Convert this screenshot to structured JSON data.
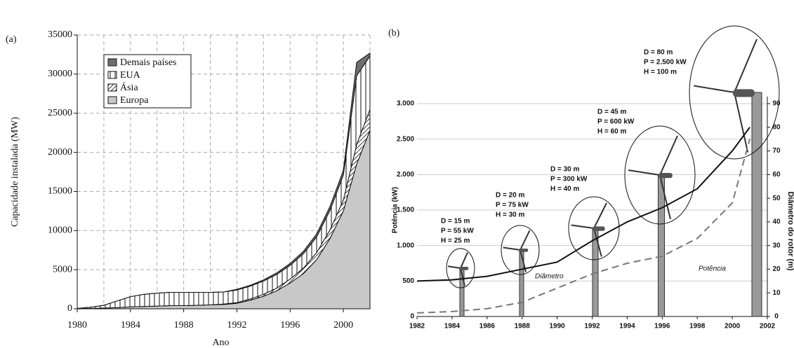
{
  "chart_data": [
    {
      "type": "stacked_area",
      "panel_label": "(a)",
      "xlabel": "Ano",
      "ylabel": "Capacidade instalada (MW)",
      "x": [
        1980,
        1981,
        1982,
        1983,
        1984,
        1985,
        1986,
        1987,
        1988,
        1989,
        1990,
        1991,
        1992,
        1993,
        1994,
        1995,
        1996,
        1997,
        1998,
        1999,
        2000,
        2001,
        2002
      ],
      "series": [
        {
          "name": "Europa",
          "color": "#c8c8c8",
          "hatch": "none",
          "values": [
            20,
            50,
            100,
            150,
            250,
            300,
            350,
            400,
            400,
            450,
            500,
            550,
            700,
            1100,
            1600,
            2300,
            3300,
            4500,
            6300,
            9000,
            12500,
            18500,
            22800
          ]
        },
        {
          "name": "Ásia",
          "color": "#ffffff",
          "hatch": "diagonal",
          "values": [
            0,
            0,
            0,
            0,
            0,
            0,
            0,
            0,
            0,
            0,
            0,
            50,
            100,
            150,
            250,
            350,
            500,
            700,
            900,
            1100,
            1400,
            2500,
            2700
          ]
        },
        {
          "name": "EUA",
          "color": "#ffffff",
          "hatch": "vertical",
          "values": [
            30,
            150,
            350,
            850,
            1300,
            1550,
            1650,
            1700,
            1700,
            1650,
            1600,
            1550,
            1600,
            1650,
            1700,
            1750,
            1750,
            1850,
            2000,
            2500,
            3200,
            8800,
            6800
          ]
        },
        {
          "name": "Demais países",
          "color": "#6e6e6e",
          "hatch": "none",
          "values": [
            0,
            0,
            0,
            0,
            0,
            0,
            0,
            0,
            0,
            0,
            0,
            0,
            100,
            100,
            150,
            200,
            250,
            300,
            400,
            500,
            600,
            1700,
            400
          ]
        }
      ],
      "xlim": [
        1980,
        2002
      ],
      "xticks": [
        1980,
        1984,
        1988,
        1992,
        1996,
        2000
      ],
      "x_grid": [
        1982,
        1984,
        1986,
        1988,
        1990,
        1992,
        1994,
        1996,
        1998,
        2000,
        2002
      ],
      "ylim": [
        0,
        35000
      ],
      "yticks": [
        0,
        5000,
        10000,
        15000,
        20000,
        25000,
        30000,
        35000
      ],
      "grid": true,
      "legend": "upper-left"
    },
    {
      "type": "line",
      "panel_label": "(b)",
      "ylabel": "Potência (kW)",
      "y2label": "Diâmetro do rotor (m)",
      "x": [
        1982,
        1984,
        1986,
        1988,
        1990,
        1992,
        1994,
        1996,
        1998,
        2000,
        2001
      ],
      "series": [
        {
          "name": "Diâmetro",
          "color": "#111111",
          "linestyle": "solid",
          "axis": "y2",
          "values": [
            15,
            15.5,
            17,
            20,
            23,
            32,
            40,
            46,
            54,
            70,
            80
          ]
        },
        {
          "name": "Potência",
          "color": "#777777",
          "linestyle": "dashed",
          "values": [
            50,
            70,
            110,
            200,
            400,
            600,
            750,
            850,
            1100,
            1600,
            2500
          ]
        }
      ],
      "xlim": [
        1982,
        2002
      ],
      "xticks": [
        1982,
        1984,
        1986,
        1988,
        1990,
        1992,
        1994,
        1996,
        1998,
        2000,
        2002
      ],
      "ylim": [
        0,
        3000
      ],
      "yticks": [
        0,
        500,
        {
          "value": 1000,
          "label": "1.000"
        },
        {
          "value": 1500,
          "label": "1.500"
        },
        {
          "value": 2000,
          "label": "2.000"
        },
        {
          "value": 2500,
          "label": "2.500"
        },
        {
          "value": 3000,
          "label": "3.000"
        }
      ],
      "y2lim": [
        0,
        90
      ],
      "y2ticks": [
        0,
        10,
        20,
        30,
        40,
        50,
        60,
        70,
        80,
        90
      ],
      "grid": true,
      "annotations": [
        {
          "lines": [
            "D = 15 m",
            "P = 55 kW",
            "H = 25 m"
          ]
        },
        {
          "lines": [
            "D = 20 m",
            "P = 75 kW",
            "H = 30 m"
          ]
        },
        {
          "lines": [
            "D = 30 m",
            "P = 300 kW",
            "H = 40 m"
          ]
        },
        {
          "lines": [
            "D = 45 m",
            "P = 600 kW",
            "H = 60 m"
          ]
        },
        {
          "lines": [
            "D = 80 m",
            "P = 2.500 kW",
            "H = 100 m"
          ]
        }
      ]
    }
  ]
}
